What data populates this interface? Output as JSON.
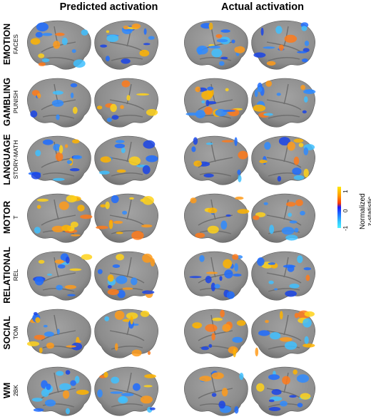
{
  "figure": {
    "columns": [
      "Predicted activation",
      "Actual activation"
    ],
    "rows": [
      {
        "task": "EMOTION",
        "contrast": "FACES"
      },
      {
        "task": "GAMBLING",
        "contrast": "PUNISH"
      },
      {
        "task": "LANGUAGE",
        "contrast": "STORY-MATH"
      },
      {
        "task": "MOTOR",
        "contrast": "T"
      },
      {
        "task": "RELATIONAL",
        "contrast": "REL"
      },
      {
        "task": "SOCIAL",
        "contrast": "TOM"
      },
      {
        "task": "WM",
        "contrast": "2BK"
      }
    ],
    "colorbar": {
      "max_label": "1",
      "mid_label": "0",
      "min_label": "-1",
      "title_line1": "Normalized",
      "title_line2": "z-statistic",
      "colors": {
        "high": "#ffe800",
        "mid_pos": "#ff3a00",
        "zero": "#1a1aff",
        "low": "#4ff0ff"
      }
    },
    "surface_color": "#8c8c8c"
  }
}
